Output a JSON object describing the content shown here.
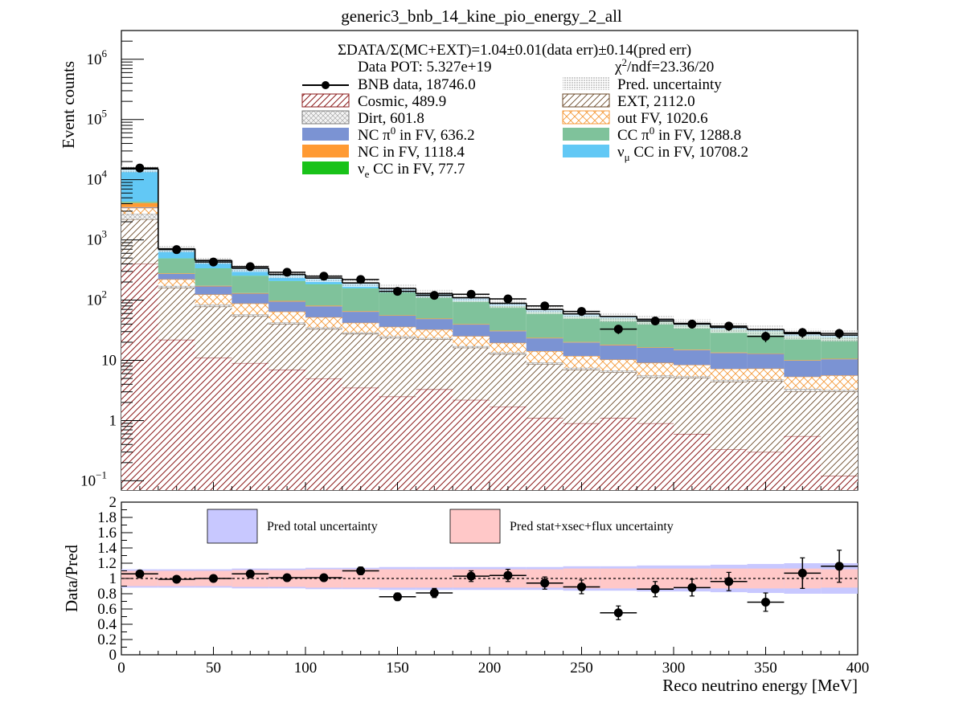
{
  "chart_data": {
    "type": "bar",
    "title": "generic3_bnb_14_kine_pio_energy_2_all",
    "xlabel": "Reco neutrino energy [MeV]",
    "ylabel": "Event counts",
    "ratio_ylabel": "Data/Pred",
    "summary": "ΣDATA/Σ(MC+EXT)=1.04±0.01(data err)±0.14(pred err)",
    "pot": "Data POT: 5.327e+19",
    "chi2_suffix": "/ndf=23.36/20",
    "xlim": [
      0,
      400
    ],
    "ylim_log": [
      0.07,
      3000000
    ],
    "ratio_ylim": [
      0,
      2
    ],
    "x_tick_labels": [
      "0",
      "50",
      "100",
      "150",
      "200",
      "250",
      "300",
      "350",
      "400"
    ],
    "ratio_tick_labels": [
      "0",
      "0.2",
      "0.4",
      "0.6",
      "0.8",
      "1",
      "1.2",
      "1.4",
      "1.6",
      "1.8",
      "2"
    ],
    "bin_edges": [
      0,
      20,
      40,
      60,
      80,
      100,
      120,
      140,
      160,
      180,
      200,
      220,
      240,
      260,
      280,
      300,
      320,
      340,
      360,
      380,
      400
    ],
    "legend": {
      "data": "BNB data, 18746.0",
      "pred": "Pred. uncertainty",
      "cosmic": "Cosmic, 489.9",
      "ext": "EXT, 2112.0",
      "dirt": "Dirt, 601.8",
      "outfv": "out FV, 1020.6",
      "ncpi0_suffix": " in FV,  636.2",
      "ccpi0_suffix": " in FV, 1288.8",
      "ncfv": "NC in FV, 1118.4",
      "numucc_suffix": " CC in FV, 10708.2",
      "nuecc_suffix": " CC in FV, 77.7"
    },
    "ratio_legend": {
      "total": "Pred total uncertainty",
      "stat": "Pred stat+xsec+flux uncertainty"
    },
    "stack_series": [
      {
        "key": "cosmic",
        "color": "#8b1a1a",
        "values": [
          400,
          22,
          11,
          9,
          7,
          5,
          3.5,
          2.5,
          3.3,
          2.2,
          1.7,
          1.1,
          0.9,
          1.1,
          0.9,
          0.6,
          0.33,
          0.3,
          0.55,
          0.12
        ]
      },
      {
        "key": "ext",
        "color": "#6b4a2a",
        "values": [
          1800,
          138,
          67,
          45,
          33,
          28,
          24,
          21,
          19,
          14,
          11,
          7.5,
          6.1,
          5.2,
          4.3,
          4.5,
          4.1,
          4.2,
          2.5,
          2.9
        ]
      },
      {
        "key": "dirt",
        "color": "#9a9a9a",
        "values": [
          500,
          12,
          6,
          4,
          2.5,
          2,
          1.5,
          1.5,
          1.2,
          1,
          0.8,
          0.6,
          0.5,
          0.5,
          0.4,
          0.3,
          0.3,
          0.3,
          0.3,
          0.2
        ]
      },
      {
        "key": "outfv",
        "color": "#f59a3a",
        "values": [
          700,
          50,
          40,
          30,
          22,
          17,
          13,
          11,
          9,
          8,
          6,
          5,
          4.3,
          3.5,
          3.5,
          3,
          2.5,
          2.5,
          2,
          2.4
        ]
      },
      {
        "key": "ncpi0",
        "color": "#7b93d3",
        "values": [
          100,
          50,
          45,
          40,
          30,
          27,
          22,
          19,
          16,
          14,
          11,
          9,
          8,
          7.5,
          7,
          6.4,
          6,
          5.5,
          4.5,
          4.8
        ]
      },
      {
        "key": "ncfv",
        "color": "#ff9a33",
        "values": [
          600,
          6,
          4,
          3,
          2.5,
          2,
          1.5,
          1,
          1,
          0.8,
          0.6,
          0.5,
          0.4,
          0.4,
          0.3,
          0.3,
          0.3,
          0.2,
          0.2,
          0.2
        ]
      },
      {
        "key": "ccpi0",
        "color": "#7fc29b",
        "values": [
          200,
          210,
          160,
          120,
          108,
          100,
          90,
          75,
          62,
          56,
          48,
          39,
          33,
          31,
          27,
          23,
          19,
          17,
          15,
          13
        ]
      },
      {
        "key": "nuecc",
        "color": "#19c219",
        "values": [
          20,
          4,
          3,
          2.5,
          2,
          1.5,
          1.2,
          1,
          0.8,
          0.6,
          0.5,
          0.4,
          0.3,
          0.3,
          0.3,
          0.2,
          0.2,
          0.2,
          0.2,
          0.2
        ]
      },
      {
        "key": "numucc",
        "color": "#62c8f5",
        "values": [
          10800,
          220,
          120,
          85,
          60,
          50,
          36,
          24,
          16,
          13,
          9,
          7,
          5.5,
          4,
          4.3,
          2.8,
          2.6,
          2.2,
          2.5,
          2.4
        ]
      }
    ],
    "pred_uncertainty_frac": [
      0.12,
      0.12,
      0.12,
      0.13,
      0.13,
      0.14,
      0.14,
      0.15,
      0.15,
      0.15,
      0.16,
      0.16,
      0.17,
      0.18,
      0.18,
      0.18,
      0.19,
      0.2,
      0.2,
      0.21
    ],
    "data_values": [
      15600,
      690,
      430,
      360,
      290,
      250,
      220,
      140,
      120,
      125,
      105,
      80,
      65,
      33,
      45,
      40,
      37,
      25,
      29,
      28
    ],
    "ratio_values": [
      1.06,
      0.99,
      1.0,
      1.06,
      1.01,
      1.01,
      1.1,
      0.76,
      0.81,
      1.03,
      1.04,
      0.94,
      0.89,
      0.55,
      0.86,
      0.88,
      0.96,
      0.69,
      1.07,
      1.16
    ],
    "ratio_errors": [
      0.03,
      0.03,
      0.03,
      0.03,
      0.04,
      0.04,
      0.05,
      0.05,
      0.06,
      0.07,
      0.08,
      0.08,
      0.09,
      0.09,
      0.1,
      0.11,
      0.12,
      0.12,
      0.2,
      0.21
    ],
    "ratio_band_total": [
      0.12,
      0.12,
      0.12,
      0.13,
      0.13,
      0.14,
      0.14,
      0.15,
      0.15,
      0.15,
      0.15,
      0.15,
      0.16,
      0.16,
      0.17,
      0.17,
      0.18,
      0.19,
      0.2,
      0.2
    ],
    "ratio_band_stat": [
      0.1,
      0.1,
      0.1,
      0.11,
      0.11,
      0.12,
      0.12,
      0.12,
      0.12,
      0.12,
      0.12,
      0.12,
      0.13,
      0.13,
      0.13,
      0.13,
      0.13,
      0.13,
      0.13,
      0.12
    ]
  }
}
